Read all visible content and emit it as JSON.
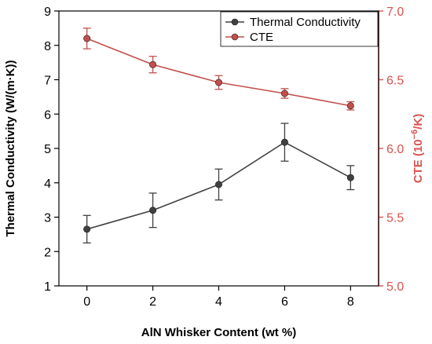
{
  "colors": {
    "left_series": "#404040",
    "right_series": "#c0504d",
    "right_axis": "#d9534f",
    "frame": "#000000"
  },
  "chart_data": {
    "type": "line",
    "xlabel": "AlN Whisker Content (wt %)",
    "ylabel_left": "Thermal Conductivity (W/(m·K))",
    "ylabel_right_parts": {
      "pre": "CTE (10",
      "sup": "−6",
      "post": "/K)"
    },
    "x": [
      0,
      2,
      4,
      6,
      8
    ],
    "x_ticks": [
      0,
      2,
      4,
      6,
      8
    ],
    "xlim": [
      -0.85,
      8.85
    ],
    "ylim_left": [
      1,
      9
    ],
    "y_ticks_left": [
      1,
      2,
      3,
      4,
      5,
      6,
      7,
      8,
      9
    ],
    "ylim_right": [
      5.0,
      7.0
    ],
    "y_ticks_right": [
      "5.0",
      "5.5",
      "6.0",
      "6.5",
      "7.0"
    ],
    "legend_position": "top-right",
    "series": [
      {
        "name": "Thermal Conductivity",
        "axis": "left",
        "values": [
          2.65,
          3.2,
          3.95,
          5.18,
          4.15
        ],
        "errors": [
          0.4,
          0.5,
          0.45,
          0.55,
          0.35
        ]
      },
      {
        "name": "CTE",
        "axis": "right",
        "values": [
          6.8,
          6.61,
          6.48,
          6.4,
          6.31
        ],
        "errors": [
          0.075,
          0.06,
          0.05,
          0.035,
          0.03
        ]
      }
    ]
  }
}
